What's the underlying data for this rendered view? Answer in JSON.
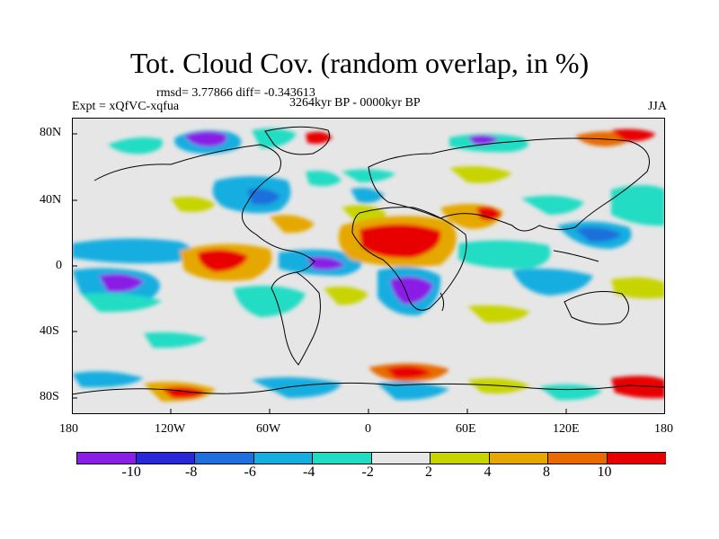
{
  "title": "Tot. Cloud Cov. (random overlap, in %)",
  "stats": "rmsd= 3.77866 diff= -0.343613",
  "period": "3264kyr BP - 0000kyr BP",
  "experiment": "Expt = xQfVC-xqfua",
  "season": "JJA",
  "x_ticks": [
    "180",
    "120W",
    "60W",
    "0",
    "60E",
    "120E",
    "180"
  ],
  "y_ticks": [
    "80N",
    "40N",
    "0",
    "40S",
    "80S"
  ],
  "legend": {
    "labels": [
      "-10",
      "-8",
      "-6",
      "-4",
      "-2",
      "2",
      "4",
      "8",
      "10"
    ],
    "colors": [
      "#8a1ee6",
      "#2828d8",
      "#1f6fdc",
      "#16aee0",
      "#20dcc4",
      "#e6e6e6",
      "#c8d400",
      "#e6a800",
      "#e86a00",
      "#e80000"
    ]
  }
}
